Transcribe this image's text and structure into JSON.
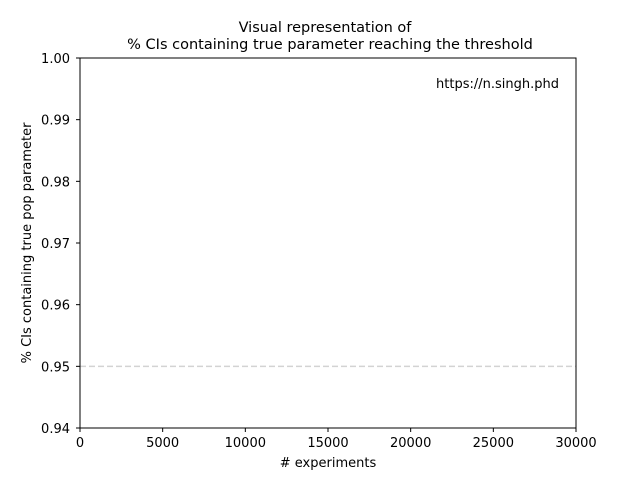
{
  "chart_data": {
    "type": "line",
    "title_line1": "Visual representation of",
    "title_line2": "% CIs containing true parameter reaching the threshold",
    "xlabel": "# experiments",
    "ylabel": "% CIs containing true pop parameter",
    "xlim": [
      0,
      30000
    ],
    "ylim": [
      0.94,
      1.0
    ],
    "x_ticks": [
      0,
      5000,
      10000,
      15000,
      20000,
      25000,
      30000
    ],
    "x_tick_labels": [
      "0",
      "5000",
      "10000",
      "15000",
      "20000",
      "25000",
      "30000"
    ],
    "y_ticks": [
      0.94,
      0.95,
      0.96,
      0.97,
      0.98,
      0.99,
      1.0
    ],
    "y_tick_labels": [
      "0.94",
      "0.95",
      "0.96",
      "0.97",
      "0.98",
      "0.99",
      "1.00"
    ],
    "grid": false,
    "series": [],
    "reference_lines": [
      {
        "orientation": "horizontal",
        "y": 0.95,
        "style": "dashed",
        "color": "#d3d3d3"
      }
    ],
    "annotations": [
      {
        "text": "https://n.singh.phd",
        "position": "top-right",
        "color": "#808080"
      }
    ]
  }
}
